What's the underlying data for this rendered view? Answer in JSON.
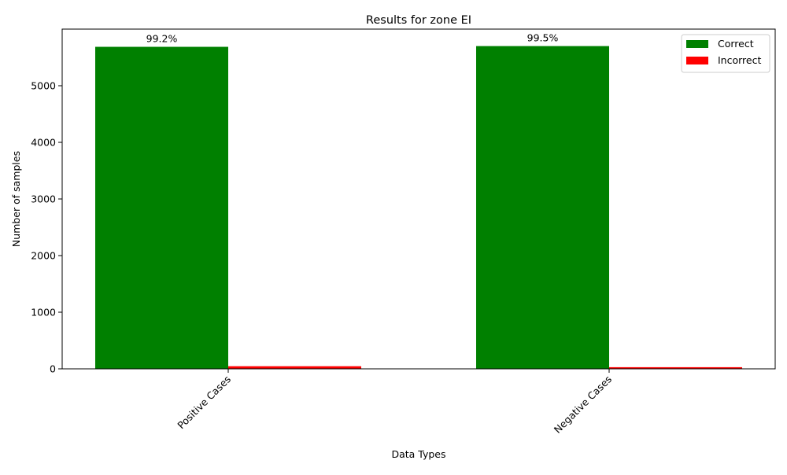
{
  "chart_data": {
    "type": "bar",
    "title": "Results for zone EI",
    "xlabel": "Data Types",
    "ylabel": "Number of samples",
    "categories": [
      "Positive Cases",
      "Negative Cases"
    ],
    "series": [
      {
        "name": "Correct",
        "color": "#008000",
        "values": [
          5687,
          5700
        ]
      },
      {
        "name": "Incorrect",
        "color": "#ff0000",
        "values": [
          46,
          29
        ]
      }
    ],
    "bar_labels": [
      "99.2%",
      "99.5%"
    ],
    "ylim": [
      0,
      6000
    ],
    "yticks": [
      0,
      1000,
      2000,
      3000,
      4000,
      5000
    ],
    "grid": false,
    "legend_position": "top-right"
  }
}
